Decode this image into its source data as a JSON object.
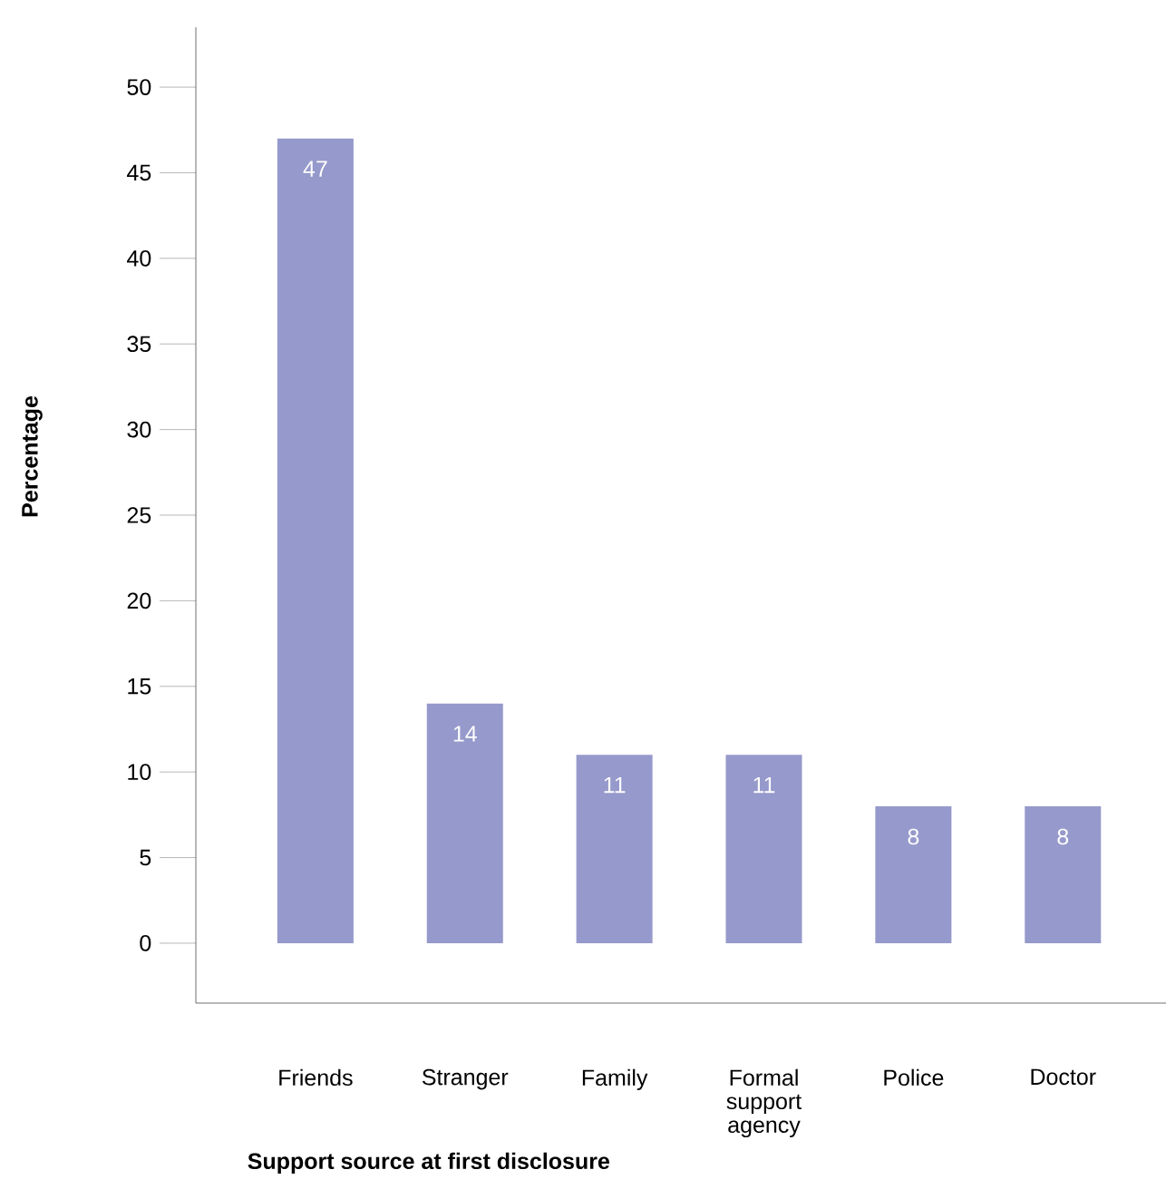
{
  "chart_data": {
    "type": "bar",
    "xlabel": "Support source at first disclosure",
    "ylabel": "Percentage",
    "categories": [
      "Friends",
      "Stranger",
      "Family",
      "Formal support agency",
      "Police",
      "Doctor"
    ],
    "values": [
      47,
      14,
      11,
      11,
      8,
      8
    ],
    "color": "#9699cb",
    "ylim": [
      -3.5,
      53.5
    ],
    "yticks": [
      0,
      5,
      10,
      15,
      20,
      25,
      30,
      35,
      40,
      45,
      50
    ],
    "data_labels": true,
    "grid": false
  }
}
